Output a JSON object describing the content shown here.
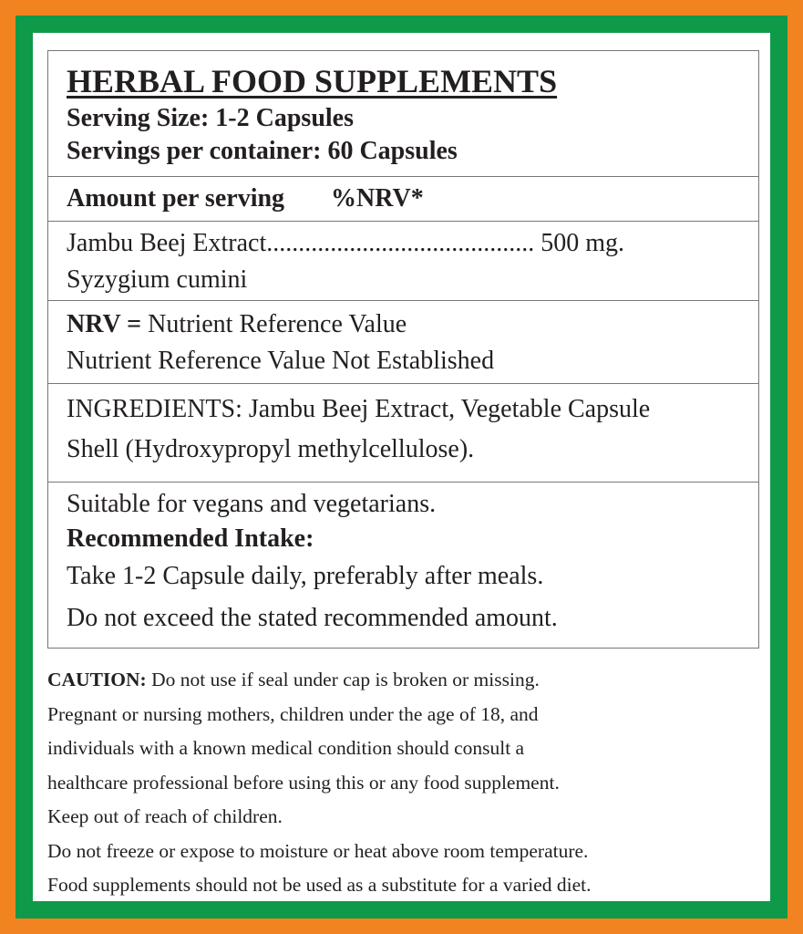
{
  "colors": {
    "outer_border": "#f28321",
    "inner_border": "#0f9a4a",
    "background": "#ffffff"
  },
  "header": {
    "title": "HERBAL FOOD SUPPLEMENTS",
    "serving_size": "Serving Size: 1-2 Capsules",
    "servings_per_container": "Servings per container: 60 Capsules"
  },
  "amount_header": {
    "label": "Amount per serving",
    "nrv": "%NRV*"
  },
  "ingredient": {
    "name": "Jambu Beej Extract",
    "dots": "..........................................",
    "amount": "500 mg.",
    "latin": "Syzygium cumini"
  },
  "nrv": {
    "abbr": "NRV =",
    "definition": "Nutrient Reference Value",
    "note": "Nutrient Reference Value Not Established"
  },
  "ingredients": {
    "line1": "INGREDIENTS: Jambu Beej Extract, Vegetable Capsule",
    "line2": "Shell (Hydroxypropyl methylcellulose)."
  },
  "usage": {
    "suitable": "Suitable for vegans and vegetarians.",
    "intake_heading": "Recommended Intake:",
    "intake_line1": "Take 1-2 Capsule daily, preferably after meals.",
    "intake_line2": "Do not exceed the stated recommended amount."
  },
  "caution": {
    "label": "CAUTION:",
    "lines": [
      " Do not use if seal under cap is broken or missing.",
      "Pregnant or nursing mothers, children under the age of 18, and",
      "individuals with a known medical condition should consult a",
      "healthcare professional before using this or any food supplement.",
      "Keep out of reach of children.",
      "Do not freeze or expose to moisture or heat above room temperature.",
      "Food supplements should not be used as a substitute for a varied diet."
    ]
  }
}
